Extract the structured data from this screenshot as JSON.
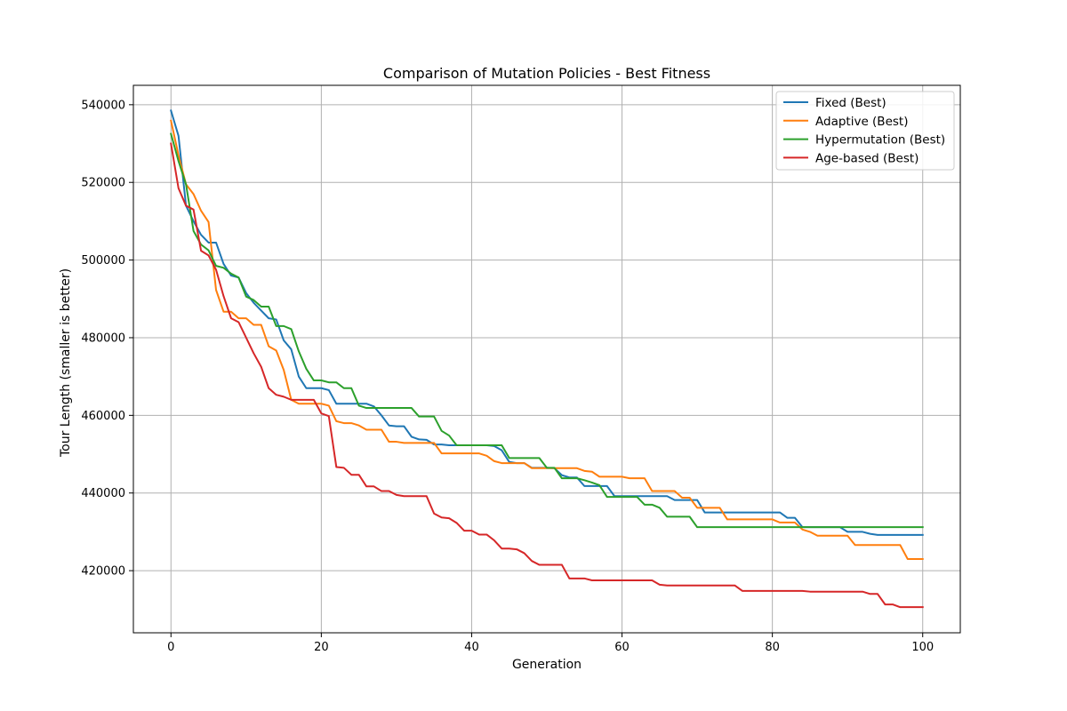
{
  "chart_data": {
    "type": "line",
    "title": "Comparison of Mutation Policies - Best Fitness",
    "xlabel": "Generation",
    "ylabel": "Tour Length (smaller is better)",
    "xlim": [
      -5,
      105
    ],
    "ylim": [
      404000,
      545000
    ],
    "xticks": [
      0,
      20,
      40,
      60,
      80,
      100
    ],
    "yticks": [
      420000,
      440000,
      460000,
      480000,
      500000,
      520000,
      540000
    ],
    "grid": true,
    "legend_position": "top-right",
    "x": [
      0,
      1,
      2,
      3,
      4,
      5,
      6,
      7,
      8,
      9,
      10,
      11,
      12,
      13,
      14,
      15,
      16,
      17,
      18,
      19,
      20,
      21,
      22,
      23,
      24,
      25,
      26,
      27,
      28,
      29,
      30,
      31,
      32,
      33,
      34,
      35,
      36,
      37,
      38,
      39,
      40,
      41,
      42,
      43,
      44,
      45,
      46,
      47,
      48,
      49,
      50,
      51,
      52,
      53,
      54,
      55,
      56,
      57,
      58,
      59,
      60,
      61,
      62,
      63,
      64,
      65,
      66,
      67,
      68,
      69,
      70,
      71,
      72,
      73,
      74,
      75,
      76,
      77,
      78,
      79,
      80,
      81,
      82,
      83,
      84,
      85,
      86,
      87,
      88,
      89,
      90,
      91,
      92,
      93,
      94,
      95,
      96,
      97,
      98,
      99,
      100
    ],
    "series": [
      {
        "name": "Fixed (Best)",
        "color": "#1f77b4",
        "values": [
          538500,
          532000,
          514000,
          510000,
          506500,
          504500,
          504500,
          499000,
          496000,
          495500,
          491500,
          489000,
          487000,
          485000,
          484700,
          479300,
          477000,
          470000,
          467000,
          467000,
          467000,
          466500,
          463000,
          463000,
          463000,
          463000,
          463000,
          462300,
          460000,
          457400,
          457200,
          457200,
          454500,
          453800,
          453700,
          452500,
          452500,
          452300,
          452300,
          452300,
          452300,
          452300,
          452300,
          452100,
          451000,
          448000,
          447700,
          447700,
          446500,
          446500,
          446500,
          446400,
          444600,
          444000,
          444000,
          441800,
          441800,
          441800,
          441800,
          439200,
          439200,
          439200,
          439200,
          439200,
          439200,
          439200,
          439200,
          438200,
          438200,
          438200,
          438200,
          435000,
          435000,
          435000,
          435000,
          435000,
          435000,
          435000,
          435000,
          435000,
          435000,
          435000,
          433600,
          433600,
          431200,
          431200,
          431200,
          431200,
          431200,
          431200,
          430000,
          430000,
          430000,
          429500,
          429200,
          429200,
          429200,
          429200,
          429200,
          429200,
          429200
        ]
      },
      {
        "name": "Adaptive (Best)",
        "color": "#ff7f0e",
        "values": [
          535900,
          527000,
          519500,
          517000,
          512700,
          509800,
          492300,
          486700,
          486700,
          485000,
          485000,
          483300,
          483300,
          477800,
          476700,
          471700,
          464000,
          463000,
          463000,
          463000,
          463000,
          462500,
          458500,
          458000,
          458000,
          457400,
          456300,
          456300,
          456300,
          453200,
          453200,
          452900,
          452900,
          452900,
          452900,
          452900,
          450200,
          450200,
          450200,
          450200,
          450200,
          450200,
          449600,
          448200,
          447700,
          447700,
          447700,
          447700,
          446400,
          446400,
          446400,
          446400,
          446400,
          446400,
          446400,
          445700,
          445500,
          444200,
          444200,
          444200,
          444200,
          443800,
          443800,
          443800,
          440500,
          440500,
          440500,
          440500,
          438800,
          438800,
          436200,
          436200,
          436200,
          436200,
          433200,
          433200,
          433200,
          433200,
          433200,
          433200,
          433200,
          432400,
          432400,
          432400,
          430600,
          430000,
          429000,
          429000,
          429000,
          429000,
          429000,
          426600,
          426600,
          426600,
          426600,
          426600,
          426600,
          426600,
          423000,
          423000,
          423000
        ]
      },
      {
        "name": "Hypermutation (Best)",
        "color": "#2ca02c",
        "values": [
          532500,
          525500,
          519500,
          507500,
          504000,
          502500,
          498500,
          498000,
          496500,
          495500,
          490600,
          489700,
          488000,
          488000,
          483000,
          483000,
          482200,
          476500,
          472000,
          469000,
          469000,
          468500,
          468500,
          467000,
          467000,
          462500,
          461900,
          461900,
          461900,
          461900,
          461900,
          461900,
          461900,
          459700,
          459700,
          459700,
          456000,
          454800,
          452300,
          452300,
          452300,
          452300,
          452300,
          452300,
          452300,
          449000,
          449000,
          449000,
          449000,
          449000,
          446500,
          446500,
          443800,
          443800,
          443800,
          443300,
          442700,
          442000,
          439000,
          439000,
          439000,
          439000,
          439000,
          437000,
          437000,
          436200,
          433900,
          433900,
          433900,
          433900,
          431200,
          431200,
          431200,
          431200,
          431200,
          431200,
          431200,
          431200,
          431200,
          431200,
          431200,
          431200,
          431200,
          431200,
          431200,
          431200,
          431200,
          431200,
          431200,
          431200,
          431200,
          431200,
          431200,
          431200,
          431200,
          431200,
          431200,
          431200,
          431200,
          431200,
          431200
        ]
      },
      {
        "name": "Age-based (Best)",
        "color": "#d62728",
        "values": [
          530000,
          518500,
          514000,
          513000,
          502400,
          501200,
          497500,
          490700,
          485000,
          484000,
          480000,
          476000,
          472500,
          467000,
          465300,
          464800,
          464000,
          464000,
          464000,
          464000,
          460500,
          459800,
          446700,
          446500,
          444700,
          444700,
          441700,
          441700,
          440500,
          440500,
          439500,
          439200,
          439200,
          439200,
          439200,
          434700,
          433700,
          433500,
          432300,
          430300,
          430300,
          429300,
          429300,
          427800,
          425700,
          425700,
          425500,
          424500,
          422500,
          421500,
          421500,
          421500,
          421500,
          418000,
          418000,
          418000,
          417500,
          417500,
          417500,
          417500,
          417500,
          417500,
          417500,
          417500,
          417500,
          416400,
          416200,
          416200,
          416200,
          416200,
          416200,
          416200,
          416200,
          416200,
          416200,
          416200,
          414800,
          414800,
          414800,
          414800,
          414800,
          414800,
          414800,
          414800,
          414800,
          414600,
          414600,
          414600,
          414600,
          414600,
          414600,
          414600,
          414600,
          414000,
          414000,
          411300,
          411300,
          410600,
          410600,
          410600,
          410600
        ]
      }
    ]
  }
}
